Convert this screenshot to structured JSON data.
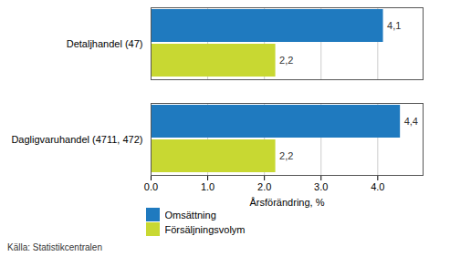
{
  "chart_data": {
    "type": "bar",
    "orientation": "horizontal",
    "categories": [
      "Dagligvaruhandel (4711, 472)",
      "Detaljhandel (47)"
    ],
    "series": [
      {
        "name": "Omsättning",
        "color": "#1f7abf",
        "values": [
          4.4,
          4.1
        ],
        "value_labels": [
          "4,4",
          "4,1"
        ]
      },
      {
        "name": "Försäljningsvolym",
        "color": "#c8d832",
        "values": [
          2.2,
          2.2
        ],
        "value_labels": [
          "2,2",
          "2,2"
        ]
      }
    ],
    "xlabel": "Årsförändring, %",
    "xlim": [
      0,
      4.8
    ],
    "xticks": [
      0,
      1,
      2,
      3,
      4
    ],
    "grid": "x",
    "data_labels": true,
    "legend": "bottom",
    "source": "Källa: Statistikcentralen"
  }
}
